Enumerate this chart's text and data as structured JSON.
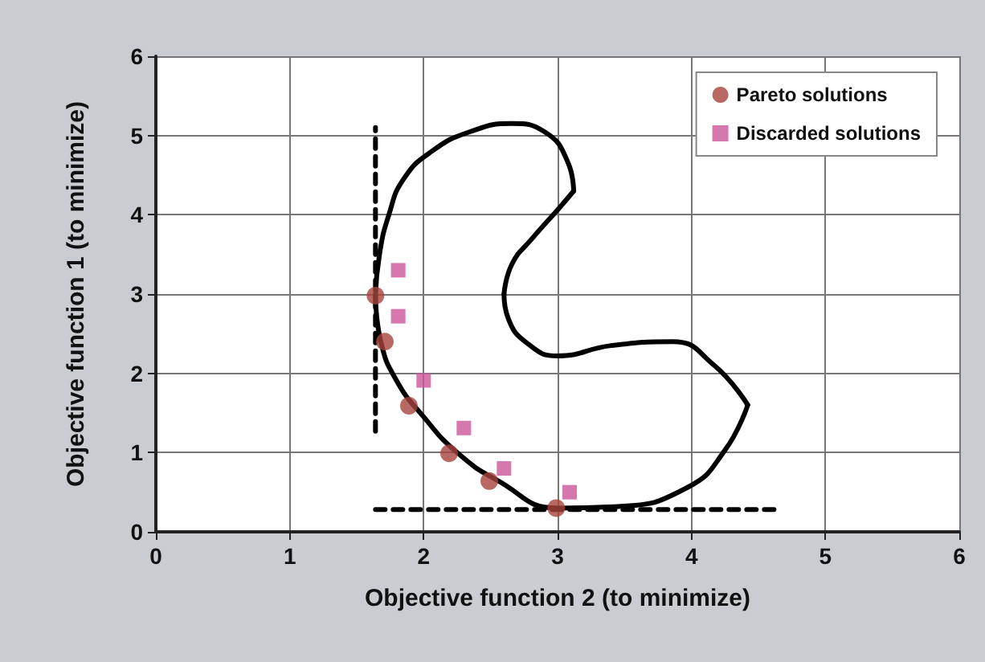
{
  "chart_data": {
    "type": "scatter",
    "xlabel": "Objective function 2 (to minimize)",
    "ylabel": "Objective function 1 (to minimize)",
    "xlim": [
      0,
      6
    ],
    "ylim": [
      0,
      6
    ],
    "xticks": [
      0,
      1,
      2,
      3,
      4,
      5,
      6
    ],
    "yticks": [
      0,
      1,
      2,
      3,
      4,
      5,
      6
    ],
    "grid": true,
    "legend": "top right",
    "series": [
      {
        "type": "line",
        "color": "#000000",
        "marker": "none",
        "line_style": "solid",
        "x": [
          1.64,
          1.68,
          1.8,
          2.0,
          2.25,
          2.55,
          3.0,
          3.45,
          3.97,
          4.25,
          4.42
        ],
        "values": [
          2.98,
          2.4,
          1.9,
          1.45,
          1.0,
          0.65,
          0.3,
          0.32,
          0.56,
          1.03,
          1.6
        ]
      },
      {
        "type": "line",
        "color": "#000000",
        "marker": "none",
        "line_style": "solid",
        "x": [
          4.42,
          4.17,
          3.86,
          3.4,
          3.0,
          2.78,
          2.63,
          2.6
        ],
        "values": [
          1.6,
          2.1,
          2.4,
          2.35,
          2.22,
          2.37,
          2.7,
          3.0
        ]
      },
      {
        "type": "line",
        "color": "#000000",
        "marker": "none",
        "line_style": "solid",
        "x": [
          2.6,
          2.66,
          2.81,
          3.02,
          3.12
        ],
        "values": [
          3.0,
          3.38,
          3.7,
          4.1,
          4.3
        ]
      },
      {
        "type": "line",
        "color": "#000000",
        "marker": "none",
        "line_style": "solid",
        "x": [
          3.12,
          3.08,
          2.9,
          2.66,
          2.35,
          2.06,
          1.85,
          1.74,
          1.67,
          1.64
        ],
        "values": [
          4.3,
          4.65,
          5.05,
          5.15,
          5.05,
          4.8,
          4.45,
          4.0,
          3.5,
          2.98
        ]
      },
      {
        "type": "line",
        "color": "#000000",
        "marker": "none",
        "line_style": "dashed",
        "x": [
          1.64,
          1.64
        ],
        "values": [
          1.27,
          5.1
        ]
      },
      {
        "type": "line",
        "color": "#000000",
        "marker": "none",
        "line_style": "dashed",
        "x": [
          1.64,
          4.65
        ],
        "values": [
          0.28,
          0.28
        ]
      },
      {
        "name": "Pareto solutions",
        "color": "#a8443c",
        "marker": "circle",
        "x": [
          1.64,
          1.71,
          1.89,
          2.19,
          2.49,
          2.99
        ],
        "values": [
          2.98,
          2.4,
          1.59,
          0.99,
          0.64,
          0.3
        ]
      },
      {
        "name": "Discarded solutions",
        "color": "#cc5599",
        "marker": "square",
        "x": [
          1.81,
          1.81,
          2.0,
          2.3,
          2.6,
          3.09
        ],
        "values": [
          3.3,
          2.72,
          1.91,
          1.31,
          0.8,
          0.5
        ]
      }
    ]
  }
}
